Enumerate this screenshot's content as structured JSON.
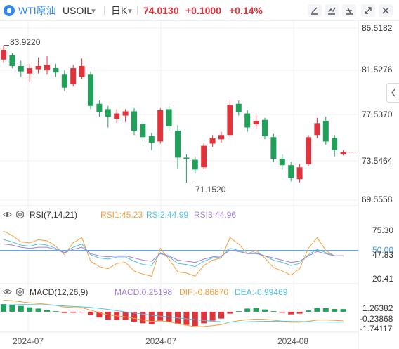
{
  "header": {
    "symbol_name": "WTI原油",
    "symbol_code": "USOIL",
    "period": "日K",
    "price": "74.0130",
    "change": "+0.1000",
    "change_pct": "+0.14%",
    "icons": [
      "drawing-tool-icon",
      "chart-type-icon",
      "settings-icon",
      "fullscreen-icon",
      "close-icon"
    ]
  },
  "price_axis": {
    "labels": [
      "85.5182",
      "81.5276",
      "77.5370",
      "73.5464",
      "69.5558"
    ],
    "high_note": "83.9220",
    "low_note": "71.1520"
  },
  "rsi": {
    "title": "RSI(7,14,21)",
    "rsi1_label": "RSI1:45.23",
    "rsi2_label": "RSI2:44.99",
    "rsi3_label": "RSI3:44.96",
    "axis_labels": [
      "75.30",
      "50.00",
      "47.83",
      "20.41"
    ],
    "colors": {
      "rsi1": "#f5a03c",
      "rsi2": "#4fc1df",
      "rsi3": "#a480d2",
      "mid": "#4a9de8"
    }
  },
  "macd": {
    "title": "MACD(12,26,9)",
    "macd_label": "MACD:0.25198",
    "dif_label": "DIF:-0.86870",
    "dea_label": "DEA:-0.99469",
    "axis_labels": [
      "1.26382",
      "-0.23868",
      "-1.74117"
    ],
    "colors": {
      "macd": "#a480d2",
      "dif": "#f5a03c",
      "dea": "#4fc1df",
      "pos": "#1fa15a",
      "neg": "#e0333b"
    }
  },
  "x_axis": {
    "labels": [
      "2024-07",
      "2024-07",
      "2024-08"
    ]
  },
  "colors": {
    "up": "#e0333b",
    "down": "#1fa15a",
    "accent": "#2f89f0"
  },
  "chart_data": {
    "type": "candlestick",
    "title": "WTI原油 USOIL 日K",
    "ylim": [
      69.5558,
      85.5182
    ],
    "candles": [
      {
        "open": 82.6,
        "close": 83.5,
        "high": 83.92,
        "low": 82.3
      },
      {
        "open": 83.0,
        "close": 82.0,
        "high": 83.2,
        "low": 81.8
      },
      {
        "open": 82.0,
        "close": 81.5,
        "high": 82.5,
        "low": 81.0
      },
      {
        "open": 81.3,
        "close": 81.8,
        "high": 82.2,
        "low": 80.5
      },
      {
        "open": 81.7,
        "close": 82.0,
        "high": 82.8,
        "low": 81.3
      },
      {
        "open": 81.6,
        "close": 82.1,
        "high": 82.9,
        "low": 81.2
      },
      {
        "open": 81.8,
        "close": 81.4,
        "high": 82.2,
        "low": 81.0
      },
      {
        "open": 81.2,
        "close": 80.0,
        "high": 81.6,
        "low": 79.7
      },
      {
        "open": 80.3,
        "close": 81.8,
        "high": 82.1,
        "low": 80.1
      },
      {
        "open": 81.0,
        "close": 82.0,
        "high": 82.7,
        "low": 80.8
      },
      {
        "open": 81.2,
        "close": 78.3,
        "high": 81.5,
        "low": 78.0
      },
      {
        "open": 78.5,
        "close": 77.7,
        "high": 78.8,
        "low": 77.3
      },
      {
        "open": 78.0,
        "close": 77.3,
        "high": 78.3,
        "low": 76.3
      },
      {
        "open": 77.1,
        "close": 77.6,
        "high": 78.0,
        "low": 76.7
      },
      {
        "open": 77.4,
        "close": 77.8,
        "high": 78.0,
        "low": 76.8
      },
      {
        "open": 77.8,
        "close": 76.0,
        "high": 78.1,
        "low": 75.6
      },
      {
        "open": 76.6,
        "close": 75.4,
        "high": 76.9,
        "low": 75.0
      },
      {
        "open": 75.5,
        "close": 74.9,
        "high": 75.8,
        "low": 74.2
      },
      {
        "open": 75.0,
        "close": 77.9,
        "high": 78.1,
        "low": 74.8
      },
      {
        "open": 78.0,
        "close": 76.4,
        "high": 78.3,
        "low": 76.0
      },
      {
        "open": 76.0,
        "close": 73.5,
        "high": 76.5,
        "low": 72.5
      },
      {
        "open": 73.5,
        "close": 73.4,
        "high": 73.8,
        "low": 71.152
      },
      {
        "open": 73.3,
        "close": 72.4,
        "high": 73.6,
        "low": 72.0
      },
      {
        "open": 72.6,
        "close": 74.6,
        "high": 74.9,
        "low": 72.4
      },
      {
        "open": 74.8,
        "close": 75.3,
        "high": 75.6,
        "low": 74.5
      },
      {
        "open": 75.2,
        "close": 75.6,
        "high": 75.9,
        "low": 74.9
      },
      {
        "open": 75.6,
        "close": 78.4,
        "high": 78.9,
        "low": 75.4
      },
      {
        "open": 78.5,
        "close": 77.7,
        "high": 78.8,
        "low": 77.4
      },
      {
        "open": 77.6,
        "close": 76.3,
        "high": 77.9,
        "low": 75.9
      },
      {
        "open": 76.6,
        "close": 76.9,
        "high": 77.4,
        "low": 76.2
      },
      {
        "open": 77.0,
        "close": 75.5,
        "high": 77.2,
        "low": 75.2
      },
      {
        "open": 75.4,
        "close": 73.4,
        "high": 75.7,
        "low": 73.1
      },
      {
        "open": 73.4,
        "close": 72.8,
        "high": 73.8,
        "low": 72.4
      },
      {
        "open": 72.8,
        "close": 71.6,
        "high": 73.1,
        "low": 71.3
      },
      {
        "open": 71.5,
        "close": 72.6,
        "high": 72.9,
        "low": 71.2
      },
      {
        "open": 72.9,
        "close": 75.4,
        "high": 75.6,
        "low": 72.7
      },
      {
        "open": 75.6,
        "close": 76.7,
        "high": 77.2,
        "low": 75.3
      },
      {
        "open": 76.9,
        "close": 75.0,
        "high": 77.3,
        "low": 74.7
      },
      {
        "open": 75.3,
        "close": 74.2,
        "high": 75.6,
        "low": 73.6
      },
      {
        "open": 73.8,
        "close": 74.0,
        "high": 74.2,
        "low": 73.7
      }
    ],
    "rsi1": [
      68,
      64,
      58,
      57,
      60,
      59,
      54,
      46,
      57,
      62,
      40,
      35,
      33,
      38,
      39,
      31,
      28,
      26,
      52,
      42,
      30,
      29,
      26,
      36,
      41,
      43,
      62,
      56,
      47,
      50,
      43,
      34,
      31,
      27,
      33,
      52,
      62,
      50,
      45,
      45.23
    ],
    "rsi2": [
      60,
      58,
      55,
      54,
      56,
      55,
      52,
      48,
      53,
      56,
      46,
      43,
      42,
      44,
      44,
      40,
      37,
      36,
      48,
      44,
      38,
      37,
      35,
      40,
      43,
      44,
      52,
      50,
      47,
      48,
      45,
      41,
      39,
      36,
      38,
      46,
      51,
      48,
      45,
      44.99
    ],
    "rsi3": [
      56,
      55,
      53,
      52,
      53,
      53,
      51,
      48,
      51,
      53,
      47,
      45,
      44,
      45,
      45,
      43,
      41,
      40,
      47,
      45,
      41,
      40,
      39,
      42,
      44,
      45,
      50,
      49,
      47,
      47,
      45,
      43,
      41,
      39,
      40,
      45,
      49,
      47,
      45,
      44.96
    ],
    "macd_hist": [
      0.72,
      0.68,
      0.55,
      0.42,
      0.3,
      0.18,
      0.05,
      -0.12,
      -0.1,
      -0.02,
      -0.3,
      -0.55,
      -0.75,
      -0.8,
      -0.78,
      -0.95,
      -1.1,
      -1.2,
      -0.85,
      -0.95,
      -1.15,
      -1.25,
      -1.35,
      -1.1,
      -0.85,
      -0.65,
      -0.18,
      0.05,
      0.3,
      0.35,
      0.22,
      0.05,
      -0.1,
      -0.25,
      -0.18,
      0.12,
      0.35,
      0.34,
      0.26,
      0.25198
    ],
    "dif": [
      1.1,
      1.05,
      0.95,
      0.85,
      0.78,
      0.7,
      0.6,
      0.45,
      0.4,
      0.38,
      0.15,
      -0.1,
      -0.3,
      -0.4,
      -0.48,
      -0.62,
      -0.78,
      -0.92,
      -0.85,
      -0.95,
      -1.12,
      -1.28,
      -1.42,
      -1.4,
      -1.32,
      -1.22,
      -0.98,
      -0.85,
      -0.75,
      -0.7,
      -0.72,
      -0.8,
      -0.9,
      -1.0,
      -1.0,
      -0.9,
      -0.8,
      -0.78,
      -0.82,
      -0.8687
    ],
    "dea": [
      0.6,
      0.65,
      0.68,
      0.68,
      0.66,
      0.64,
      0.6,
      0.55,
      0.5,
      0.46,
      0.4,
      0.32,
      0.22,
      0.1,
      -0.02,
      -0.12,
      -0.22,
      -0.33,
      -0.42,
      -0.5,
      -0.58,
      -0.67,
      -0.75,
      -0.84,
      -0.9,
      -0.95,
      -0.98,
      -0.98,
      -0.96,
      -0.93,
      -0.91,
      -0.9,
      -0.9,
      -0.92,
      -0.93,
      -0.95,
      -0.97,
      -0.98,
      -0.99,
      -0.99469
    ]
  }
}
